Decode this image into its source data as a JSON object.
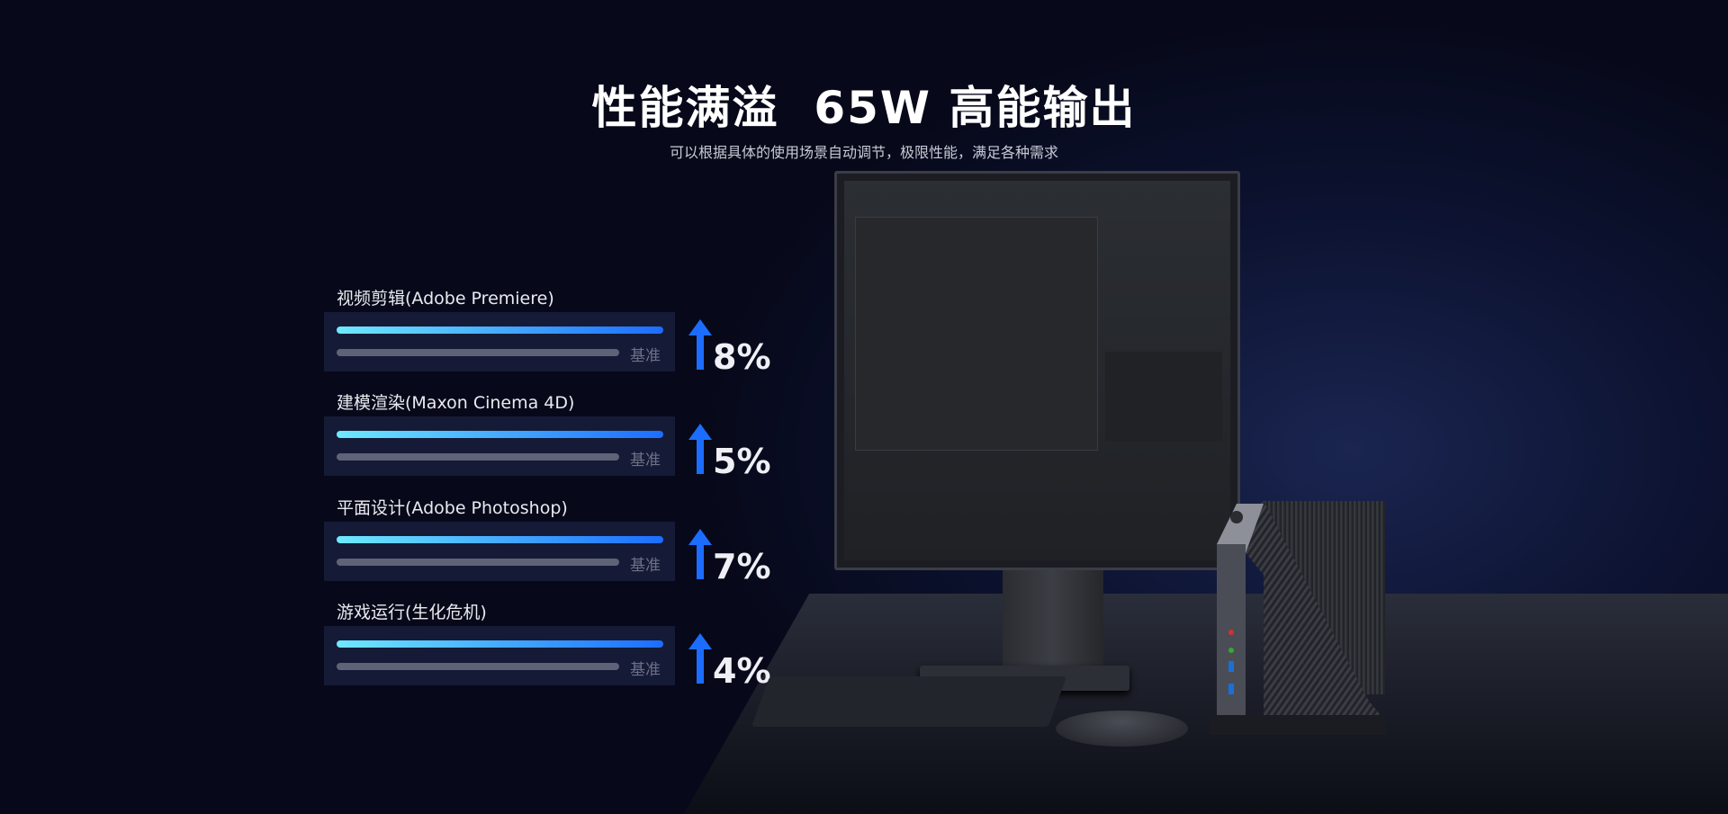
{
  "header": {
    "title": "性能满溢  65W 高能输出",
    "subtitle": "可以根据具体的使用场景自动调节，极限性能，满足各种需求"
  },
  "benchmarks": [
    {
      "label": "视频剪辑(Adobe Premiere)",
      "baseline_label": "基准",
      "improvement": "8%"
    },
    {
      "label": "建模渲染(Maxon Cinema 4D)",
      "baseline_label": "基准",
      "improvement": "5%"
    },
    {
      "label": "平面设计(Adobe Photoshop)",
      "baseline_label": "基准",
      "improvement": "7%"
    },
    {
      "label": "游戏运行(生化危机)",
      "baseline_label": "基准",
      "improvement": "4%"
    }
  ],
  "colors": {
    "accent": "#1c6dff",
    "bar_start": "#6fe9ff",
    "baseline": "#5f6378",
    "background": "#07091a"
  },
  "icons": {
    "improvement": "arrow-up-icon"
  }
}
